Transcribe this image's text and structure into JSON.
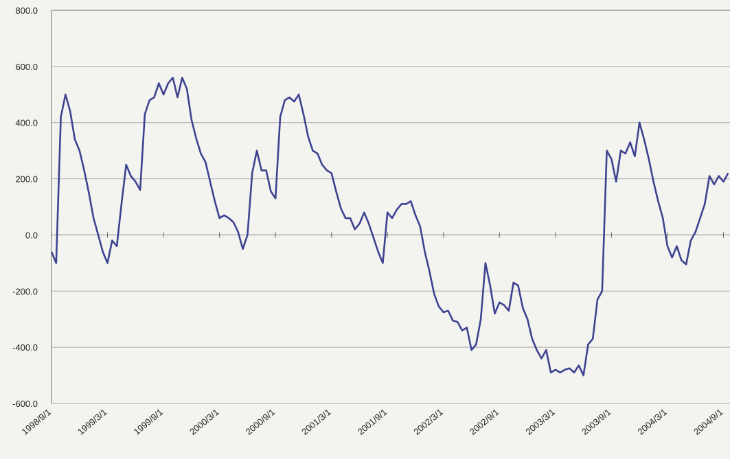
{
  "chart_data": {
    "type": "line",
    "color": "#3d4390",
    "grid": true,
    "xlim": [
      0,
      72.7
    ],
    "xticks": [
      {
        "value": 0,
        "label": "1998/9/1"
      },
      {
        "value": 6,
        "label": "1999/3/1"
      },
      {
        "value": 12,
        "label": "1999/9/1"
      },
      {
        "value": 18,
        "label": "2000/3/1"
      },
      {
        "value": 24,
        "label": "2000/9/1"
      },
      {
        "value": 30,
        "label": "2001/3/1"
      },
      {
        "value": 36,
        "label": "2001/9/1"
      },
      {
        "value": 42,
        "label": "2002/3/1"
      },
      {
        "value": 48,
        "label": "2002/9/1"
      },
      {
        "value": 54,
        "label": "2003/3/1"
      },
      {
        "value": 60,
        "label": "2003/9/1"
      },
      {
        "value": 66,
        "label": "2004/3/1"
      },
      {
        "value": 72,
        "label": "2004/9/1"
      }
    ],
    "ylim": [
      -600,
      800
    ],
    "yticks": [
      {
        "value": -600,
        "label": "-600.0"
      },
      {
        "value": -400,
        "label": "-400.0"
      },
      {
        "value": -200,
        "label": "-200.0"
      },
      {
        "value": 0,
        "label": "0.0"
      },
      {
        "value": 200,
        "label": "200.0"
      },
      {
        "value": 400,
        "label": "400.0"
      },
      {
        "value": 600,
        "label": "600.0"
      },
      {
        "value": 800,
        "label": "800.0"
      }
    ],
    "x": [
      0,
      0.5,
      1,
      1.5,
      2,
      2.5,
      3,
      3.5,
      4,
      4.5,
      5,
      5.5,
      6,
      6.5,
      7,
      7.5,
      8,
      8.5,
      9,
      9.5,
      10,
      10.5,
      11,
      11.5,
      12,
      12.5,
      13,
      13.5,
      14,
      14.5,
      15,
      15.5,
      16,
      16.5,
      17,
      17.5,
      18,
      18.5,
      19,
      19.5,
      20,
      20.5,
      21,
      21.5,
      22,
      22.5,
      23,
      23.5,
      24,
      24.5,
      25,
      25.5,
      26,
      26.5,
      27,
      27.5,
      28,
      28.5,
      29,
      29.5,
      30,
      30.5,
      31,
      31.5,
      32,
      32.5,
      33,
      33.5,
      34,
      34.5,
      35,
      35.5,
      36,
      36.5,
      37,
      37.5,
      38,
      38.5,
      39,
      39.5,
      40,
      40.5,
      41,
      41.5,
      42,
      42.5,
      43,
      43.5,
      44,
      44.5,
      45,
      45.5,
      46,
      46.5,
      47,
      47.5,
      48,
      48.5,
      49,
      49.5,
      50,
      50.5,
      51,
      51.5,
      52,
      52.5,
      53,
      53.5,
      54,
      54.5,
      55,
      55.5,
      56,
      56.5,
      57,
      57.5,
      58,
      58.5,
      59,
      59.5,
      60,
      60.5,
      61,
      61.5,
      62,
      62.5,
      63,
      63.5,
      64,
      64.5,
      65,
      65.5,
      66,
      66.5,
      67,
      67.5,
      68,
      68.5,
      69,
      69.5,
      70,
      70.5,
      71,
      71.5,
      72,
      72.5
    ],
    "values": [
      -60,
      -100,
      420,
      500,
      440,
      340,
      300,
      230,
      150,
      60,
      0,
      -60,
      -100,
      -20,
      -40,
      110,
      250,
      210,
      190,
      160,
      430,
      480,
      490,
      540,
      500,
      540,
      560,
      490,
      560,
      520,
      410,
      345,
      290,
      260,
      190,
      120,
      60,
      70,
      60,
      45,
      10,
      -50,
      0,
      220,
      300,
      230,
      230,
      155,
      130,
      420,
      480,
      490,
      475,
      500,
      430,
      350,
      300,
      290,
      250,
      230,
      220,
      155,
      95,
      60,
      60,
      20,
      40,
      80,
      40,
      -10,
      -60,
      -100,
      80,
      60,
      90,
      110,
      110,
      120,
      70,
      30,
      -60,
      -130,
      -210,
      -255,
      -275,
      -270,
      -305,
      -310,
      -340,
      -330,
      -410,
      -390,
      -300,
      -100,
      -180,
      -280,
      -240,
      -250,
      -270,
      -170,
      -180,
      -260,
      -300,
      -370,
      -410,
      -440,
      -410,
      -490,
      -480,
      -490,
      -480,
      -475,
      -490,
      -465,
      -500,
      -390,
      -370,
      -230,
      -200,
      300,
      270,
      190,
      300,
      290,
      330,
      280,
      400,
      340,
      270,
      190,
      120,
      60,
      -40,
      -80,
      -40,
      -90,
      -105,
      -20,
      10,
      60,
      110,
      210,
      180,
      210,
      190,
      220
    ]
  }
}
